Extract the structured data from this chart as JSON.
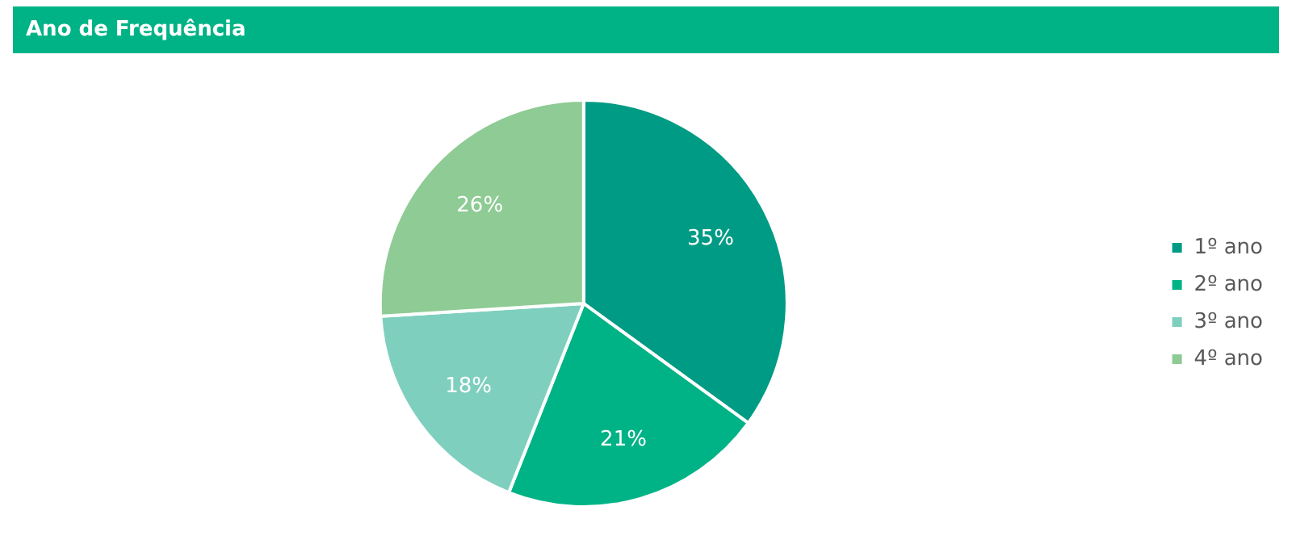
{
  "chart_data": {
    "type": "pie",
    "title": "Ano de Frequência",
    "categories": [
      "1º ano",
      "2º ano",
      "3º ano",
      "4º ano"
    ],
    "values": [
      35,
      21,
      18,
      26
    ],
    "colors": [
      "#009b84",
      "#00b386",
      "#7fcfbf",
      "#8fcb95"
    ],
    "value_labels": [
      "35%",
      "21%",
      "18%",
      "26%"
    ],
    "legend": "right"
  }
}
